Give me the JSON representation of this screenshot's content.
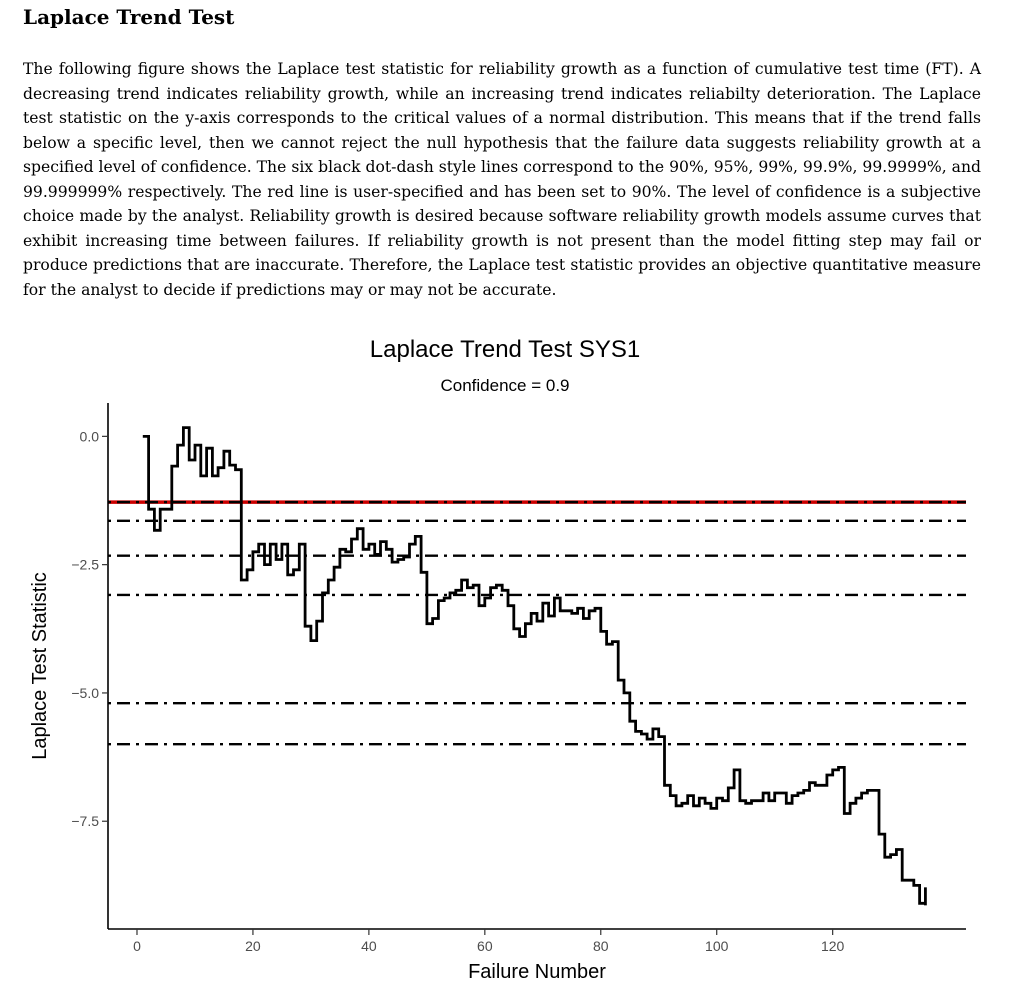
{
  "section": {
    "title": "Laplace Trend Test",
    "paragraph": "The following figure shows the Laplace test statistic for reliability growth as a function of cumulative test time (FT). A decreasing trend indicates reliability growth, while an increasing trend indicates reliabilty deterioration. The Laplace test statistic on the y-axis corresponds to the critical values of a normal distribution. This means that if the trend falls below a specific level, then we cannot reject the null hypothesis that the failure data suggests reliability growth at a specified level of confidence. The six black dot-dash style lines correspond to the 90%, 95%, 99%, 99.9%, 99.9999%, and 99.999999% respectively. The red line is user-specified and has been set to 90%. The level of confidence is a subjective choice made by the analyst. Reliability growth is desired because software reliability growth models assume curves that exhibit increasing time between failures. If reliability growth is not present than the model fitting step may fail or produce predictions that are inaccurate. Therefore, the Laplace test statistic provides an objective quantitative measure for the analyst to decide if predictions may or may not be accurate."
  },
  "chart_data": {
    "type": "line",
    "title": "Laplace Trend Test SYS1",
    "subtitle": "Confidence = 0.9",
    "xlabel": "Failure Number",
    "ylabel": "Laplace Test Statistic",
    "xlim": [
      -5,
      143
    ],
    "ylim": [
      -9.6,
      0.65
    ],
    "xticks": [
      0,
      20,
      40,
      60,
      80,
      100,
      120
    ],
    "xtick_labels": [
      "0",
      "20",
      "40",
      "60",
      "80",
      "100",
      "120"
    ],
    "yticks": [
      0.0,
      -2.5,
      -5.0,
      -7.5
    ],
    "ytick_labels": [
      "0.0",
      "-2.5",
      "-5.0",
      "-7.5"
    ],
    "grid": false,
    "line_style": "step",
    "series": [
      {
        "color": "#000000",
        "x": [
          1,
          2,
          3,
          4,
          5,
          6,
          7,
          8,
          9,
          10,
          11,
          12,
          13,
          14,
          15,
          16,
          17,
          18,
          19,
          20,
          21,
          22,
          23,
          24,
          25,
          26,
          27,
          28,
          29,
          30,
          31,
          32,
          33,
          34,
          35,
          36,
          37,
          38,
          39,
          40,
          41,
          42,
          43,
          44,
          45,
          46,
          47,
          48,
          49,
          50,
          51,
          52,
          53,
          54,
          55,
          56,
          57,
          58,
          59,
          60,
          61,
          62,
          63,
          64,
          65,
          66,
          67,
          68,
          69,
          70,
          71,
          72,
          73,
          74,
          75,
          76,
          77,
          78,
          79,
          80,
          81,
          82,
          83,
          84,
          85,
          86,
          87,
          88,
          89,
          90,
          91,
          92,
          93,
          94,
          95,
          96,
          97,
          98,
          99,
          100,
          101,
          102,
          103,
          104,
          105,
          106,
          107,
          108,
          109,
          110,
          111,
          112,
          113,
          114,
          115,
          116,
          117,
          118,
          119,
          120,
          121,
          122,
          123,
          124,
          125,
          126,
          127,
          128,
          129,
          130,
          131,
          132,
          133,
          134,
          135,
          136
        ],
        "y": [
          0.0,
          -1.42,
          -1.83,
          -1.42,
          -1.42,
          -0.58,
          -0.17,
          0.17,
          -0.46,
          -0.17,
          -0.77,
          -0.23,
          -0.77,
          -0.61,
          -0.29,
          -0.56,
          -0.65,
          -2.8,
          -2.6,
          -2.25,
          -2.1,
          -2.5,
          -2.1,
          -2.4,
          -2.1,
          -2.7,
          -2.6,
          -2.1,
          -3.7,
          -3.98,
          -3.6,
          -3.05,
          -2.8,
          -2.55,
          -2.2,
          -2.25,
          -2.0,
          -1.8,
          -2.2,
          -2.1,
          -2.3,
          -2.05,
          -2.2,
          -2.45,
          -2.4,
          -2.35,
          -2.1,
          -1.95,
          -2.65,
          -3.65,
          -3.55,
          -3.2,
          -3.15,
          -3.05,
          -3.0,
          -2.8,
          -2.95,
          -2.9,
          -3.3,
          -3.15,
          -2.95,
          -2.9,
          -3.0,
          -3.3,
          -3.75,
          -3.9,
          -3.65,
          -3.45,
          -3.6,
          -3.25,
          -3.5,
          -3.15,
          -3.4,
          -3.4,
          -3.45,
          -3.35,
          -3.55,
          -3.4,
          -3.35,
          -3.8,
          -4.05,
          -4.0,
          -4.75,
          -5.0,
          -5.55,
          -5.75,
          -5.8,
          -5.9,
          -5.7,
          -5.85,
          -6.8,
          -7.0,
          -7.2,
          -7.15,
          -7.0,
          -7.2,
          -7.05,
          -7.15,
          -7.25,
          -7.05,
          -7.1,
          -6.85,
          -6.5,
          -7.1,
          -7.15,
          -7.1,
          -7.1,
          -6.95,
          -7.1,
          -6.95,
          -6.95,
          -7.15,
          -7.0,
          -6.95,
          -6.9,
          -6.75,
          -6.8,
          -6.8,
          -6.6,
          -6.5,
          -6.45,
          -7.35,
          -7.15,
          -7.05,
          -6.95,
          -6.9,
          -6.9,
          -7.75,
          -8.2,
          -8.15,
          -8.05,
          -8.65,
          -8.65,
          -8.75,
          -9.1,
          -9.1
        ],
        "x_end": 136
      }
    ],
    "hlines": [
      {
        "y": -1.2816,
        "color": "#cc0000",
        "style": "solid",
        "label": "user-specified 90%"
      },
      {
        "y": -1.2816,
        "color": "#000000",
        "style": "dotdash",
        "label": "90%"
      },
      {
        "y": -1.6449,
        "color": "#000000",
        "style": "dotdash",
        "label": "95%"
      },
      {
        "y": -2.3263,
        "color": "#000000",
        "style": "dotdash",
        "label": "99%"
      },
      {
        "y": -3.0902,
        "color": "#000000",
        "style": "dotdash",
        "label": "99.9%"
      },
      {
        "y": -5.1993,
        "color": "#000000",
        "style": "dotdash",
        "label": "99.9999%"
      },
      {
        "y": -5.9978,
        "color": "#000000",
        "style": "dotdash",
        "label": "99.999999%"
      }
    ]
  }
}
